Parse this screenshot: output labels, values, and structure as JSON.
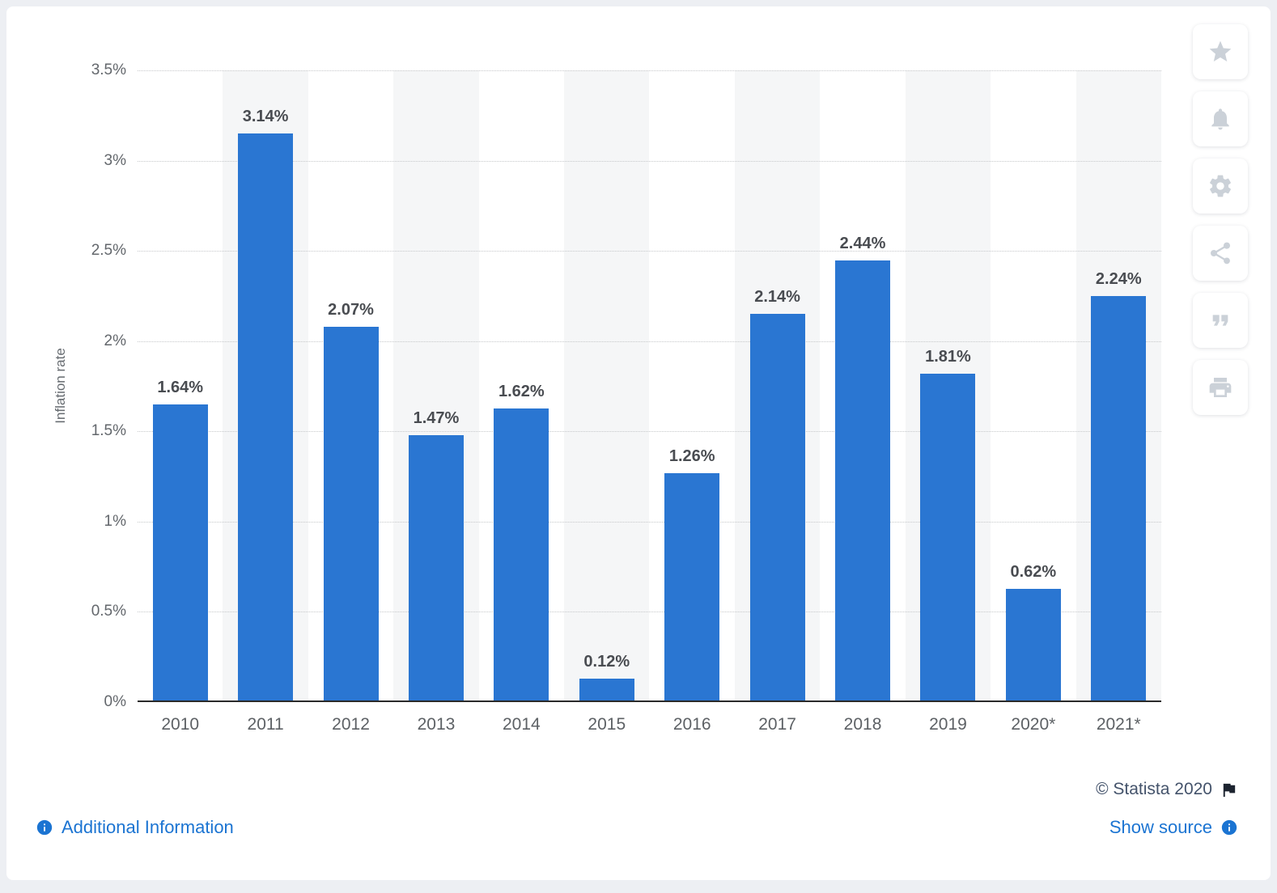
{
  "chart_data": {
    "type": "bar",
    "ylabel": "Inflation rate",
    "categories": [
      "2010",
      "2011",
      "2012",
      "2013",
      "2014",
      "2015",
      "2016",
      "2017",
      "2018",
      "2019",
      "2020*",
      "2021*"
    ],
    "values": [
      1.64,
      3.14,
      2.07,
      1.47,
      1.62,
      0.12,
      1.26,
      2.14,
      2.44,
      1.81,
      0.62,
      2.24
    ],
    "value_labels": [
      "1.64%",
      "3.14%",
      "2.07%",
      "1.47%",
      "1.62%",
      "0.12%",
      "1.26%",
      "2.14%",
      "2.44%",
      "1.81%",
      "0.62%",
      "2.24%"
    ],
    "ylim": [
      0,
      3.5
    ],
    "yticks": [
      {
        "value": 0,
        "label": "0%"
      },
      {
        "value": 0.5,
        "label": "0.5%"
      },
      {
        "value": 1,
        "label": "1%"
      },
      {
        "value": 1.5,
        "label": "1.5%"
      },
      {
        "value": 2,
        "label": "2%"
      },
      {
        "value": 2.5,
        "label": "2.5%"
      },
      {
        "value": 3,
        "label": "3%"
      },
      {
        "value": 3.5,
        "label": "3.5%"
      }
    ],
    "grid": "dotted-horizontal",
    "legend": "none",
    "bar_color": "#2a76d2"
  },
  "icon_rail": {
    "items": [
      {
        "name": "star"
      },
      {
        "name": "bell"
      },
      {
        "name": "gear"
      },
      {
        "name": "share"
      },
      {
        "name": "quote"
      },
      {
        "name": "print"
      }
    ]
  },
  "footer": {
    "copyright": "© Statista 2020",
    "flag_icon": "flag",
    "additional_information": "Additional Information",
    "show_source": "Show source",
    "info_icon": "info-circle"
  },
  "colors": {
    "bar": "#2a76d2",
    "link": "#1b74d2",
    "copyright_text": "#44536b",
    "page_background": "#edeff3",
    "column_band": "#f5f6f7"
  }
}
